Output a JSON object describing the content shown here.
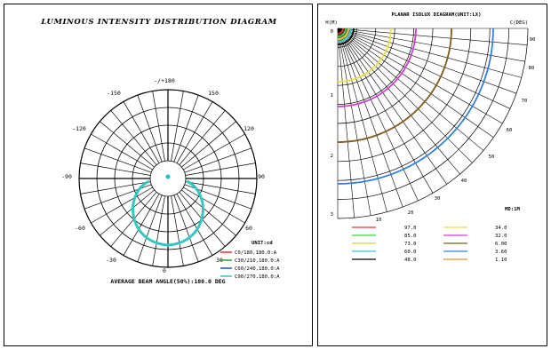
{
  "left_panel": {
    "title": "LUMINOUS INTENSITY DISTRIBUTION DIAGRAM",
    "angle_labels": [
      "-/+180",
      "150",
      "120",
      "90",
      "60",
      "30",
      "0",
      "-30",
      "-60",
      "-90",
      "-120",
      "-150"
    ],
    "unit_label": "UNIT:cd",
    "legend": [
      {
        "label": "C0/180,180.0:A",
        "color": "#e53030"
      },
      {
        "label": "C30/210,180.0:A",
        "color": "#2ea02e"
      },
      {
        "label": "C60/240,180.0:A",
        "color": "#2050c8"
      },
      {
        "label": "C90/270,180.0:A",
        "color": "#30c8c0"
      }
    ],
    "beam_angle_text": "AVERAGE BEAM ANGLE(50%):180.0 DEG"
  },
  "right_panel": {
    "title": "PLANAR ISOLUX DIAGRAM(UNIT:LX)",
    "corner_h_label": "H(M)",
    "corner_c_label": "C(DEG)",
    "h_labels": [
      "0",
      "1",
      "2",
      "3"
    ],
    "arc_labels": [
      "10",
      "20",
      "30",
      "40",
      "50",
      "60",
      "70",
      "80",
      "90"
    ],
    "md_label": "MD:1M",
    "isolux_legend": [
      {
        "value": "97.0",
        "color": "#e53030"
      },
      {
        "value": "34.0",
        "color": "#e8e040"
      },
      {
        "value": "85.0",
        "color": "#40d040"
      },
      {
        "value": "32.0",
        "color": "#d040d0"
      },
      {
        "value": "73.0",
        "color": "#e0d030"
      },
      {
        "value": "6.00",
        "color": "#806020"
      },
      {
        "value": "60.0",
        "color": "#30c8c8"
      },
      {
        "value": "3.60",
        "color": "#3080e0"
      },
      {
        "value": "48.0",
        "color": "#000000"
      },
      {
        "value": "1.10",
        "color": "#e89030"
      }
    ]
  }
}
